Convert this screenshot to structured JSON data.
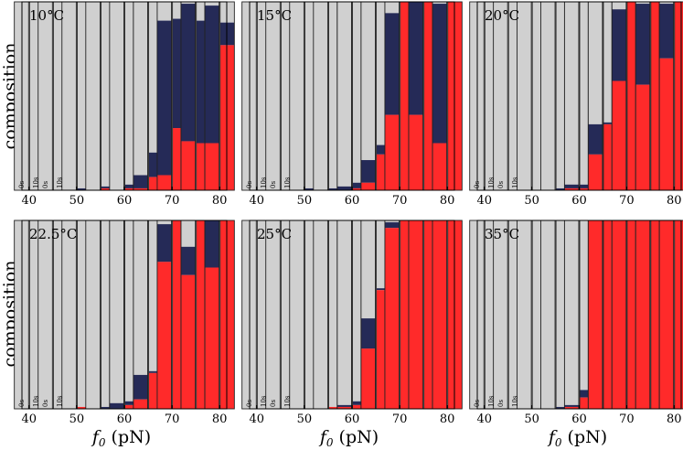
{
  "figure": {
    "ylabel_text": "composition",
    "xlabel_text": "f",
    "xlabel_sub": "0",
    "xlabel_unit": " (pN)",
    "time_labels": [
      "0s",
      "10s"
    ]
  },
  "colors": {
    "unfolded": "#d0d0d0",
    "intermediate": "#252a57",
    "folded": "#ff2a2a",
    "outline": "#222222"
  },
  "chart_data": [
    {
      "type": "bar",
      "title": "10°C",
      "categories": [
        40,
        45,
        50,
        55,
        60,
        65,
        70,
        75,
        80
      ],
      "xlabel": "f0 (pN)",
      "ylabel": "composition",
      "ylim": [
        0,
        1
      ],
      "xticks": [
        40,
        50,
        60,
        70,
        80
      ],
      "bars_0s": [
        [
          1,
          0,
          0
        ],
        [
          1,
          0,
          0
        ],
        [
          1,
          0,
          0
        ],
        [
          1,
          0,
          0
        ],
        [
          1,
          0,
          0
        ],
        [
          1,
          0,
          0
        ],
        [
          1,
          0,
          0
        ],
        [
          1,
          0,
          0
        ],
        [
          1,
          0,
          0
        ]
      ],
      "bars_10s": [
        [
          1,
          0,
          0
        ],
        [
          1,
          0,
          0
        ],
        [
          0.99,
          0.01,
          0
        ],
        [
          0.98,
          0.01,
          0.01
        ],
        [
          0.97,
          0.02,
          0.01
        ],
        [
          0.8,
          0.13,
          0.07
        ],
        [
          0.09,
          0.58,
          0.33
        ],
        [
          0.1,
          0.65,
          0.25
        ],
        [
          0.11,
          0.12,
          0.77
        ]
      ],
      "bars_prev_10s": [
        null,
        null,
        null,
        null,
        null,
        [
          0.92,
          0.07,
          0.01
        ],
        [
          0.1,
          0.82,
          0.08
        ],
        [
          0.01,
          0.73,
          0.26
        ],
        [
          0.02,
          0.73,
          0.25
        ]
      ]
    },
    {
      "type": "bar",
      "title": "15°C",
      "categories": [
        40,
        45,
        50,
        55,
        60,
        65,
        70,
        75,
        80
      ],
      "xlabel": "f0 (pN)",
      "ylabel": "composition",
      "ylim": [
        0,
        1
      ],
      "xticks": [
        40,
        50,
        60,
        70,
        80
      ],
      "bars_0s": [
        [
          1,
          0,
          0
        ],
        [
          1,
          0,
          0
        ],
        [
          1,
          0,
          0
        ],
        [
          1,
          0,
          0
        ],
        [
          1,
          0,
          0
        ],
        [
          1,
          0,
          0
        ],
        [
          1,
          0,
          0
        ],
        [
          1,
          0,
          0
        ],
        [
          1,
          0,
          0
        ]
      ],
      "bars_10s": [
        [
          1,
          0,
          0
        ],
        [
          1,
          0,
          0
        ],
        [
          0.99,
          0.01,
          0
        ],
        [
          0.99,
          0.01,
          0
        ],
        [
          0.96,
          0.03,
          0.01
        ],
        [
          0.76,
          0.05,
          0.19
        ],
        [
          0,
          0,
          1
        ],
        [
          0,
          0,
          1
        ],
        [
          0,
          0,
          1
        ]
      ],
      "bars_prev_10s": [
        null,
        null,
        null,
        null,
        [
          0.98,
          0.02,
          0
        ],
        [
          0.84,
          0.12,
          0.04
        ],
        [
          0.06,
          0.54,
          0.4
        ],
        [
          0,
          0.6,
          0.4
        ],
        [
          0.01,
          0.74,
          0.25
        ]
      ]
    },
    {
      "type": "bar",
      "title": "20°C",
      "categories": [
        40,
        45,
        50,
        55,
        60,
        65,
        70,
        75,
        80
      ],
      "xlabel": "f0 (pN)",
      "ylabel": "composition",
      "ylim": [
        0,
        1
      ],
      "xticks": [
        40,
        50,
        60,
        70,
        80
      ],
      "bars_0s": [
        [
          1,
          0,
          0
        ],
        [
          1,
          0,
          0
        ],
        [
          1,
          0,
          0
        ],
        [
          1,
          0,
          0
        ],
        [
          1,
          0,
          0
        ],
        [
          1,
          0,
          0
        ],
        [
          1,
          0,
          0
        ],
        [
          1,
          0,
          0
        ],
        [
          1,
          0,
          0
        ]
      ],
      "bars_10s": [
        [
          1,
          0,
          0
        ],
        [
          1,
          0,
          0
        ],
        [
          1,
          0,
          0
        ],
        [
          0.99,
          0.01,
          0
        ],
        [
          0.97,
          0.02,
          0.01
        ],
        [
          0.64,
          0.01,
          0.35
        ],
        [
          0,
          0,
          1
        ],
        [
          0,
          0,
          1
        ],
        [
          0,
          0,
          1
        ]
      ],
      "bars_prev_10s": [
        null,
        null,
        null,
        null,
        [
          0.97,
          0.02,
          0.01
        ],
        [
          0.65,
          0.16,
          0.19
        ],
        [
          0.04,
          0.38,
          0.58
        ],
        [
          0.01,
          0.43,
          0.56
        ],
        [
          0.01,
          0.29,
          0.7
        ]
      ]
    },
    {
      "type": "bar",
      "title": "22.5°C",
      "categories": [
        40,
        45,
        50,
        55,
        60,
        65,
        70,
        75,
        80
      ],
      "xlabel": "f0 (pN)",
      "ylabel": "composition",
      "ylim": [
        0,
        1
      ],
      "xticks": [
        40,
        50,
        60,
        70,
        80
      ],
      "bars_0s": [
        [
          1,
          0,
          0
        ],
        [
          1,
          0,
          0
        ],
        [
          1,
          0,
          0
        ],
        [
          1,
          0,
          0
        ],
        [
          1,
          0,
          0
        ],
        [
          1,
          0,
          0
        ],
        [
          1,
          0,
          0
        ],
        [
          1,
          0,
          0
        ],
        [
          1,
          0,
          0
        ]
      ],
      "bars_10s": [
        [
          1,
          0,
          0
        ],
        [
          1,
          0,
          0
        ],
        [
          0.99,
          0,
          0.01
        ],
        [
          0.99,
          0.01,
          0
        ],
        [
          0.96,
          0.02,
          0.02
        ],
        [
          0.8,
          0.01,
          0.19
        ],
        [
          0,
          0,
          1
        ],
        [
          0,
          0,
          1
        ],
        [
          0,
          0,
          1
        ]
      ],
      "bars_prev_10s": [
        null,
        null,
        null,
        null,
        [
          0.97,
          0.03,
          0
        ],
        [
          0.82,
          0.13,
          0.05
        ],
        [
          0.02,
          0.2,
          0.78
        ],
        [
          0.14,
          0.15,
          0.71
        ],
        [
          0,
          0.25,
          0.75
        ]
      ]
    },
    {
      "type": "bar",
      "title": "25°C",
      "categories": [
        40,
        45,
        50,
        55,
        60,
        65,
        70,
        75,
        80
      ],
      "xlabel": "f0 (pN)",
      "ylabel": "composition",
      "ylim": [
        0,
        1
      ],
      "xticks": [
        40,
        50,
        60,
        70,
        80
      ],
      "bars_0s": [
        [
          1,
          0,
          0
        ],
        [
          1,
          0,
          0
        ],
        [
          1,
          0,
          0
        ],
        [
          1,
          0,
          0
        ],
        [
          1,
          0,
          0
        ],
        [
          1,
          0,
          0
        ],
        [
          1,
          0,
          0
        ],
        [
          1,
          0,
          0
        ],
        [
          1,
          0,
          0
        ]
      ],
      "bars_10s": [
        [
          1,
          0,
          0
        ],
        [
          1,
          0,
          0
        ],
        [
          1,
          0,
          0
        ],
        [
          0.99,
          0,
          0.01
        ],
        [
          0.96,
          0.02,
          0.02
        ],
        [
          0.36,
          0.01,
          0.63
        ],
        [
          0,
          0,
          1
        ],
        [
          0,
          0,
          1
        ],
        [
          0,
          0,
          1
        ]
      ],
      "bars_prev_10s": [
        null,
        null,
        null,
        null,
        [
          0.98,
          0.01,
          0.01
        ],
        [
          0.52,
          0.16,
          0.32
        ],
        [
          0.01,
          0.03,
          0.96
        ],
        [
          0,
          0,
          1
        ],
        [
          0,
          0,
          1
        ]
      ]
    },
    {
      "type": "bar",
      "title": "35°C",
      "categories": [
        40,
        45,
        50,
        55,
        60,
        65,
        70,
        75,
        80
      ],
      "xlabel": "f0 (pN)",
      "ylabel": "composition",
      "ylim": [
        0,
        1
      ],
      "xticks": [
        40,
        50,
        60,
        70,
        80
      ],
      "bars_0s": [
        [
          1,
          0,
          0
        ],
        [
          1,
          0,
          0
        ],
        [
          1,
          0,
          0
        ],
        [
          1,
          0,
          0
        ],
        [
          1,
          0,
          0
        ],
        [
          1,
          0,
          0
        ],
        [
          1,
          0,
          0
        ],
        [
          1,
          0,
          0
        ],
        [
          1,
          0,
          0
        ]
      ],
      "bars_10s": [
        [
          1,
          0,
          0
        ],
        [
          1,
          0,
          0
        ],
        [
          1,
          0,
          0
        ],
        [
          0.99,
          0.01,
          0
        ],
        [
          0.9,
          0.04,
          0.06
        ],
        [
          0,
          0,
          1
        ],
        [
          0,
          0,
          1
        ],
        [
          0,
          0,
          1
        ],
        [
          0,
          0,
          1
        ]
      ],
      "bars_prev_10s": [
        null,
        null,
        null,
        null,
        [
          0.98,
          0.01,
          0.01
        ],
        [
          0,
          0,
          1
        ],
        [
          0,
          0,
          1
        ],
        [
          0,
          0,
          1
        ],
        [
          0,
          0,
          1
        ]
      ]
    }
  ]
}
